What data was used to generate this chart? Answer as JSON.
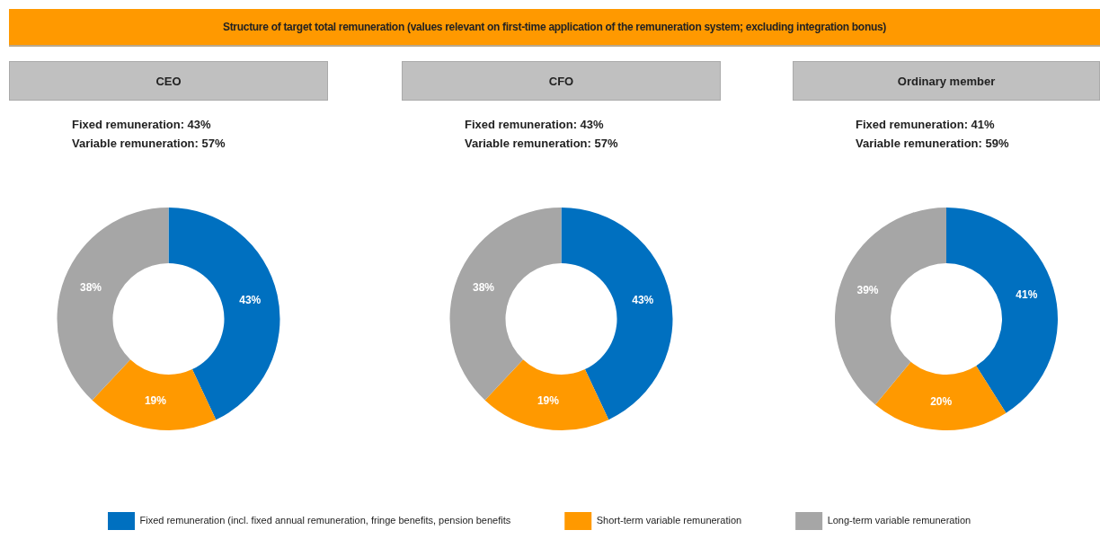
{
  "chart_data": [
    {
      "type": "other",
      "title": "Structure of target total remuneration (values relevant on first-time application of the remuneration system; excluding integration bonus)"
    },
    {
      "type": "donut",
      "title": "CEO",
      "annotations": [
        "Fixed remuneration: 43%",
        "Variable remuneration: 57%"
      ],
      "categories": [
        "Fixed remuneration (incl. fixed annual remuneration, fringe benefits, pension benefits",
        "Short-term variable remuneration",
        "Long-term variable remuneration"
      ],
      "values": [
        43,
        19,
        38
      ],
      "colors": [
        "#0070c0",
        "#ff9900",
        "#a6a6a6"
      ],
      "value_labels": [
        "43%",
        "19%",
        "38%"
      ],
      "legend": "bottom"
    },
    {
      "type": "donut",
      "title": "CFO",
      "annotations": [
        "Fixed remuneration: 43%",
        "Variable remuneration: 57%"
      ],
      "categories": [
        null,
        null,
        null
      ],
      "values": [
        43,
        19,
        38
      ],
      "colors": [
        "#0070c0",
        "#ff9900",
        "#a6a6a6"
      ],
      "value_labels": [
        "43%",
        "19%",
        "38%"
      ]
    },
    {
      "type": "donut",
      "title": "Ordinary member",
      "annotations": [
        "Fixed remuneration: 41%",
        "Variable remuneration: 59%"
      ],
      "categories": [
        null,
        null,
        null
      ],
      "values": [
        41,
        20,
        39
      ],
      "colors": [
        "#0070c0",
        "#ff9900",
        "#a6a6a6"
      ],
      "value_labels": [
        "41%",
        "20%",
        "39%"
      ]
    }
  ]
}
